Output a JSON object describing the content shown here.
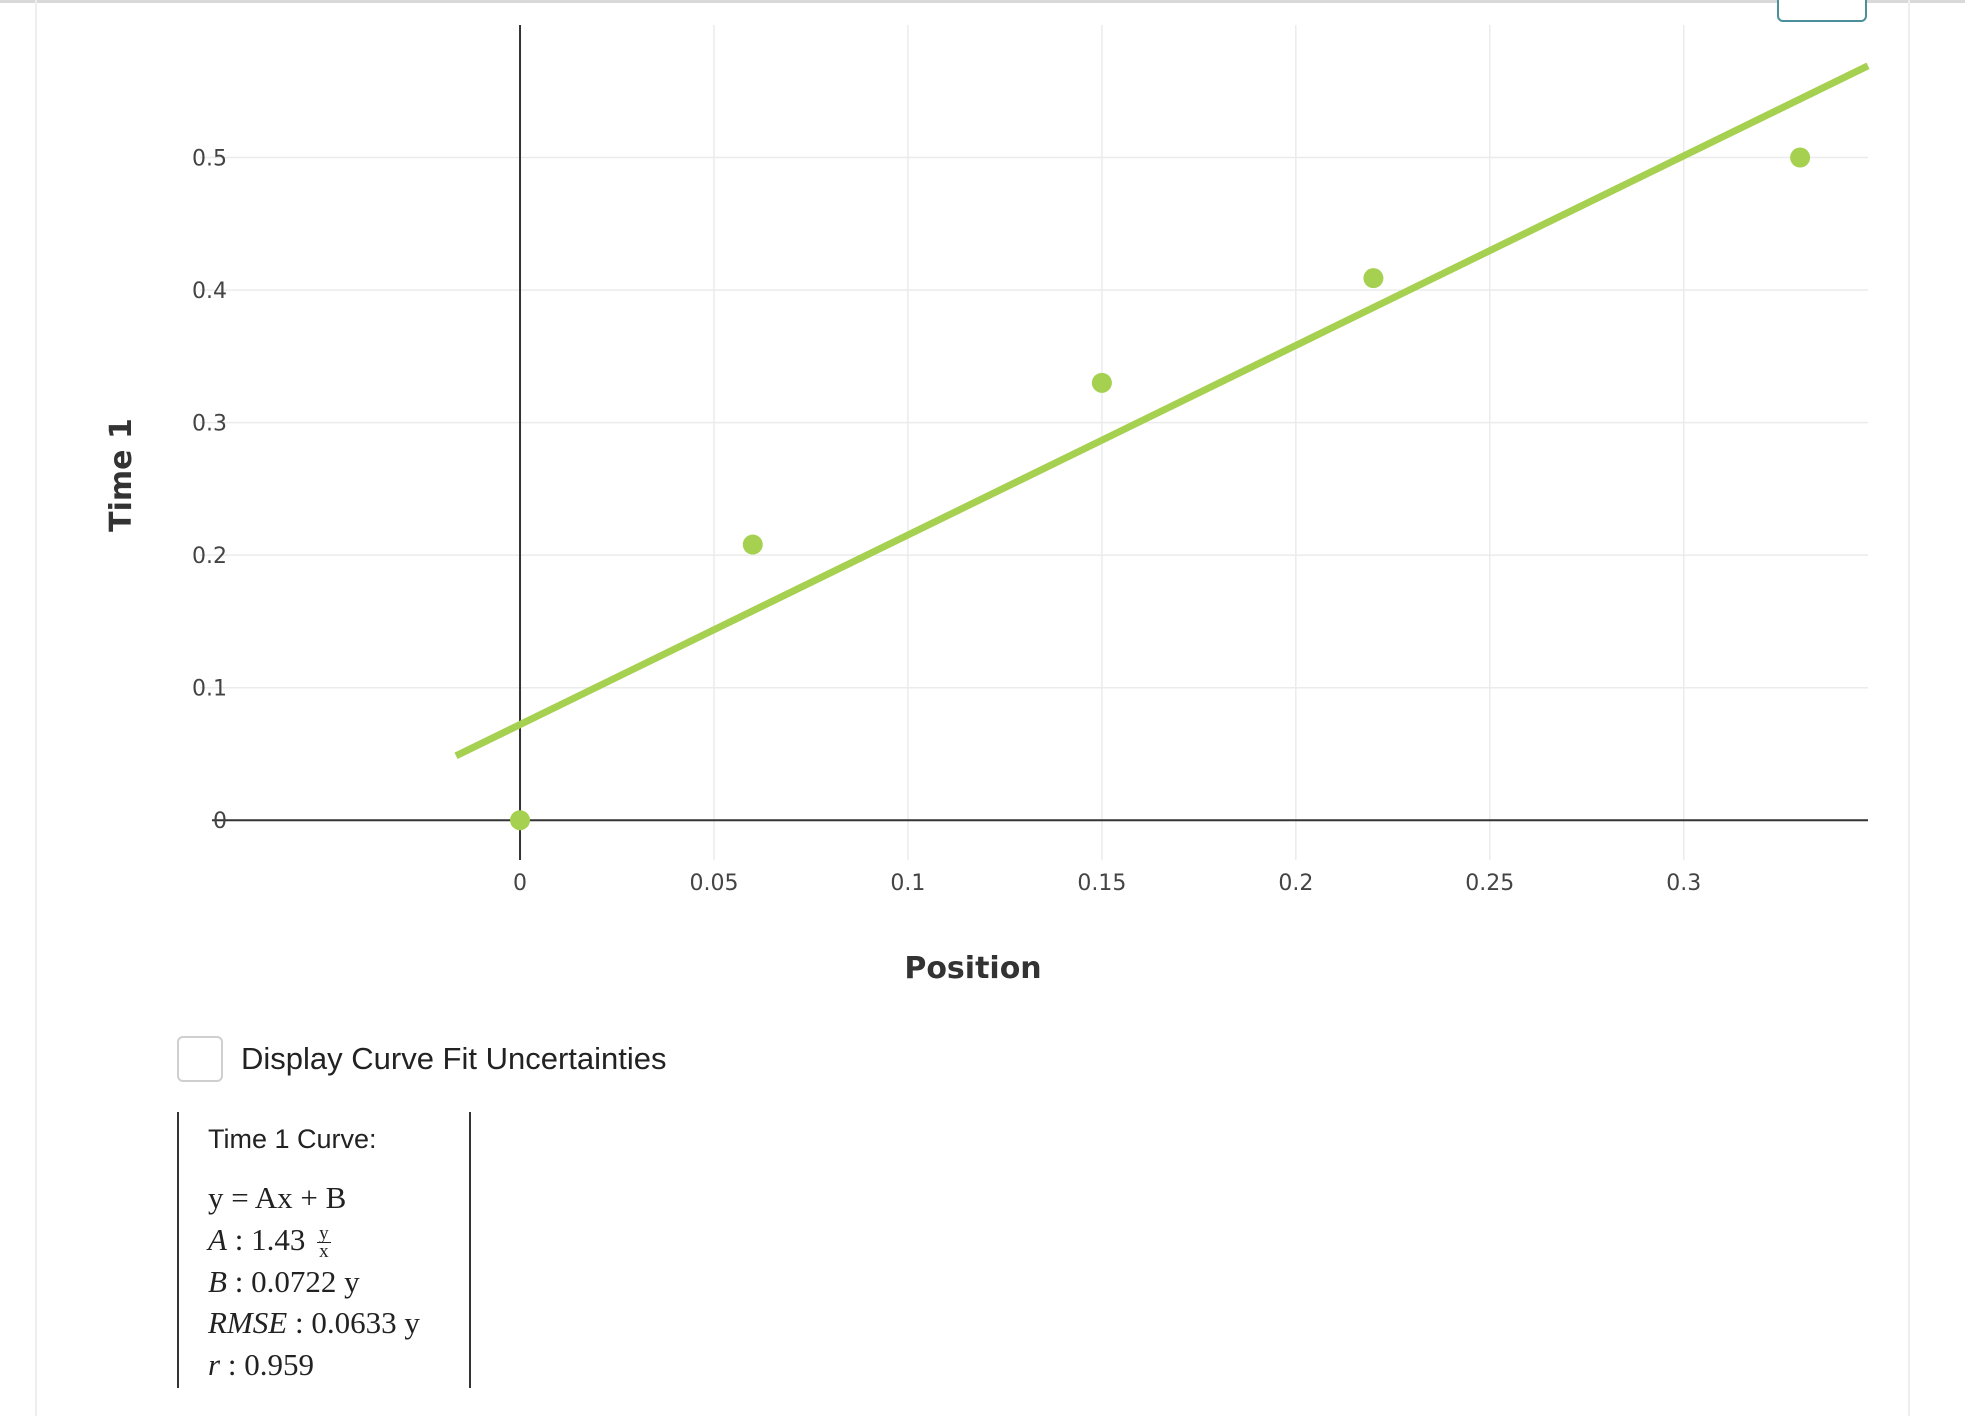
{
  "chart_data": {
    "type": "scatter",
    "xlabel": "Position",
    "ylabel": "Time 1",
    "xlim": [
      -0.0825,
      0.3475
    ],
    "ylim": [
      -0.03,
      0.6
    ],
    "xticks": [
      0,
      0.05,
      0.1,
      0.15,
      0.2,
      0.25,
      0.3
    ],
    "xtick_labels": [
      "0",
      "0.05",
      "0.1",
      "0.15",
      "0.2",
      "0.25",
      "0.3"
    ],
    "yticks": [
      0,
      0.1,
      0.2,
      0.3,
      0.4,
      0.5
    ],
    "ytick_labels": [
      "0",
      "0.1",
      "0.2",
      "0.3",
      "0.4",
      "0.5"
    ],
    "grid": true,
    "color": "#a6d04f",
    "points": [
      {
        "x": 0,
        "y": 0
      },
      {
        "x": 0.06,
        "y": 0.208
      },
      {
        "x": 0.15,
        "y": 0.33
      },
      {
        "x": 0.22,
        "y": 0.409
      },
      {
        "x": 0.33,
        "y": 0.5
      }
    ],
    "fit_line": {
      "x": [
        -0.0165,
        0.3475
      ],
      "y": [
        0.0486,
        0.5692
      ]
    }
  },
  "controls": {
    "uncertainties_label": "Display Curve Fit Uncertainties",
    "uncertainties_checked": false
  },
  "fit_results": {
    "title": "Time 1 Curve:",
    "equation": "y = Ax + B",
    "A": "1.43",
    "A_unit_num": "y",
    "A_unit_den": "x",
    "B": "0.0722 y",
    "RMSE": "0.0633 y",
    "r": "0.959"
  }
}
